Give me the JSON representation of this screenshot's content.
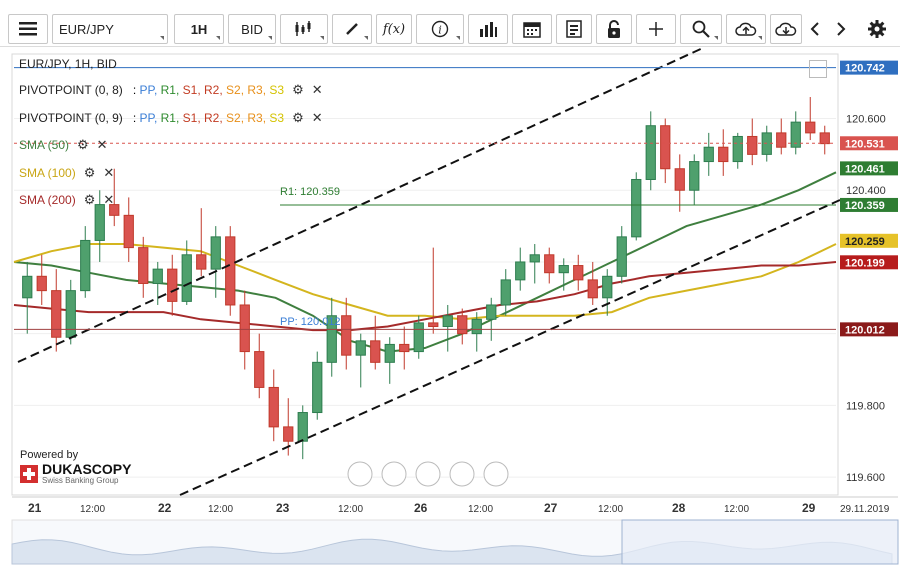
{
  "toolbar": {
    "instrument": "EUR/JPY",
    "period": "1H",
    "offer_side": "BID"
  },
  "chart_header": {
    "title": "EUR/JPY, 1H, BID",
    "pivot1": "PIVOTPOINT (0, 8)",
    "pivot2": "PIVOTPOINT (0, 9)",
    "pivot_levels": [
      "PP",
      "R1",
      "S1",
      "R2",
      "S2",
      "R3",
      "S3"
    ],
    "pivot_level_colors": [
      "#3a7ed6",
      "#2e8b2e",
      "#c23b22",
      "#c23b22",
      "#e8901b",
      "#e8901b",
      "#d4c300"
    ],
    "sma50": "SMA (50)",
    "sma100": "SMA (100)",
    "sma200": "SMA (200)"
  },
  "annotations": {
    "r1_label": "R1: 120.359",
    "pp_label": "PP: 120.012"
  },
  "branding": {
    "powered_by": "Powered by",
    "brand": "DUKASCOPY",
    "tagline": "Swiss Banking Group"
  },
  "chart_data": {
    "type": "candlestick",
    "ylim": [
      119.55,
      120.78
    ],
    "y_ticks": [
      "120.600",
      "120.400",
      "119.800",
      "119.600"
    ],
    "x_ticks": [
      "21",
      "12:00",
      "22",
      "12:00",
      "23",
      "12:00",
      "26",
      "12:00",
      "27",
      "12:00",
      "28",
      "12:00",
      "29",
      "29.11.2019"
    ],
    "price_tags": [
      {
        "label": "120.742",
        "bg": "#2f6fc0"
      },
      {
        "label": "120.531",
        "bg": "#d9534f"
      },
      {
        "label": "120.461",
        "bg": "#2e7d32"
      },
      {
        "label": "120.359",
        "bg": "#2e7d32"
      },
      {
        "label": "120.259",
        "bg": "#e6c229"
      },
      {
        "label": "120.199",
        "bg": "#b71c1c"
      },
      {
        "label": "120.012",
        "bg": "#8b1a1a"
      }
    ],
    "levels": {
      "r1": 120.359,
      "pp": 120.012,
      "last": 120.531,
      "high": 120.742
    },
    "series": [
      {
        "name": "SMA (50)",
        "color": "#3f7f3f",
        "values": [
          120.2,
          120.19,
          120.17,
          120.15,
          120.14,
          120.13,
          120.12,
          120.1,
          120.05,
          119.98,
          119.95,
          119.96,
          120.0,
          120.05,
          120.1,
          120.15,
          120.2,
          120.25,
          120.3,
          120.33,
          120.36,
          120.4,
          120.45
        ]
      },
      {
        "name": "SMA (100)",
        "color": "#d4b51e",
        "values": [
          120.2,
          120.23,
          120.25,
          120.25,
          120.24,
          120.23,
          120.19,
          120.15,
          120.11,
          120.08,
          120.05,
          120.05,
          120.04,
          120.05,
          120.05,
          120.05,
          120.06,
          120.1,
          120.12,
          120.14,
          120.16,
          120.2,
          120.25
        ]
      },
      {
        "name": "SMA (200)",
        "color": "#a52a2a",
        "values": [
          120.08,
          120.07,
          120.06,
          120.06,
          120.06,
          120.04,
          120.03,
          120.02,
          120.01,
          120.01,
          120.02,
          120.04,
          120.06,
          120.08,
          120.09,
          120.11,
          120.14,
          120.16,
          120.17,
          120.18,
          120.19,
          120.19,
          120.2
        ]
      }
    ],
    "candles": [
      [
        120.1,
        120.2,
        120.0,
        120.16
      ],
      [
        120.16,
        120.22,
        120.08,
        120.12
      ],
      [
        120.12,
        120.18,
        119.95,
        119.99
      ],
      [
        119.99,
        120.15,
        119.97,
        120.12
      ],
      [
        120.12,
        120.3,
        120.1,
        120.26
      ],
      [
        120.26,
        120.4,
        120.2,
        120.36
      ],
      [
        120.36,
        120.46,
        120.3,
        120.33
      ],
      [
        120.33,
        120.38,
        120.2,
        120.24
      ],
      [
        120.24,
        120.27,
        120.1,
        120.14
      ],
      [
        120.14,
        120.2,
        120.08,
        120.18
      ],
      [
        120.18,
        120.22,
        120.05,
        120.09
      ],
      [
        120.09,
        120.26,
        120.08,
        120.22
      ],
      [
        120.22,
        120.35,
        120.16,
        120.18
      ],
      [
        120.18,
        120.3,
        120.1,
        120.27
      ],
      [
        120.27,
        120.3,
        120.05,
        120.08
      ],
      [
        120.08,
        120.12,
        119.9,
        119.95
      ],
      [
        119.95,
        120.0,
        119.82,
        119.85
      ],
      [
        119.85,
        119.9,
        119.7,
        119.74
      ],
      [
        119.74,
        119.82,
        119.66,
        119.7
      ],
      [
        119.7,
        119.8,
        119.65,
        119.78
      ],
      [
        119.78,
        119.95,
        119.76,
        119.92
      ],
      [
        119.92,
        120.1,
        119.88,
        120.05
      ],
      [
        120.05,
        120.1,
        119.9,
        119.94
      ],
      [
        119.94,
        120.0,
        119.85,
        119.98
      ],
      [
        119.98,
        120.05,
        119.9,
        119.92
      ],
      [
        119.92,
        119.99,
        119.86,
        119.97
      ],
      [
        119.97,
        120.02,
        119.9,
        119.95
      ],
      [
        119.95,
        120.05,
        119.93,
        120.03
      ],
      [
        120.03,
        120.24,
        120.0,
        120.02
      ],
      [
        120.02,
        120.08,
        119.95,
        120.05
      ],
      [
        120.05,
        120.07,
        119.97,
        120.0
      ],
      [
        120.0,
        120.06,
        119.95,
        120.04
      ],
      [
        120.04,
        120.1,
        119.98,
        120.08
      ],
      [
        120.08,
        120.18,
        120.05,
        120.15
      ],
      [
        120.15,
        120.24,
        120.12,
        120.2
      ],
      [
        120.2,
        120.25,
        120.14,
        120.22
      ],
      [
        120.22,
        120.24,
        120.14,
        120.17
      ],
      [
        120.17,
        120.21,
        120.12,
        120.19
      ],
      [
        120.19,
        120.22,
        120.12,
        120.15
      ],
      [
        120.15,
        120.2,
        120.08,
        120.1
      ],
      [
        120.1,
        120.18,
        120.05,
        120.16
      ],
      [
        120.16,
        120.3,
        120.14,
        120.27
      ],
      [
        120.27,
        120.45,
        120.26,
        120.43
      ],
      [
        120.43,
        120.62,
        120.4,
        120.58
      ],
      [
        120.58,
        120.6,
        120.42,
        120.46
      ],
      [
        120.46,
        120.5,
        120.34,
        120.4
      ],
      [
        120.4,
        120.5,
        120.36,
        120.48
      ],
      [
        120.48,
        120.56,
        120.44,
        120.52
      ],
      [
        120.52,
        120.57,
        120.44,
        120.48
      ],
      [
        120.48,
        120.56,
        120.46,
        120.55
      ],
      [
        120.55,
        120.6,
        120.47,
        120.5
      ],
      [
        120.5,
        120.58,
        120.48,
        120.56
      ],
      [
        120.56,
        120.6,
        120.5,
        120.52
      ],
      [
        120.52,
        120.62,
        120.5,
        120.59
      ],
      [
        120.59,
        120.66,
        120.54,
        120.56
      ],
      [
        120.56,
        120.58,
        120.5,
        120.53
      ]
    ]
  }
}
